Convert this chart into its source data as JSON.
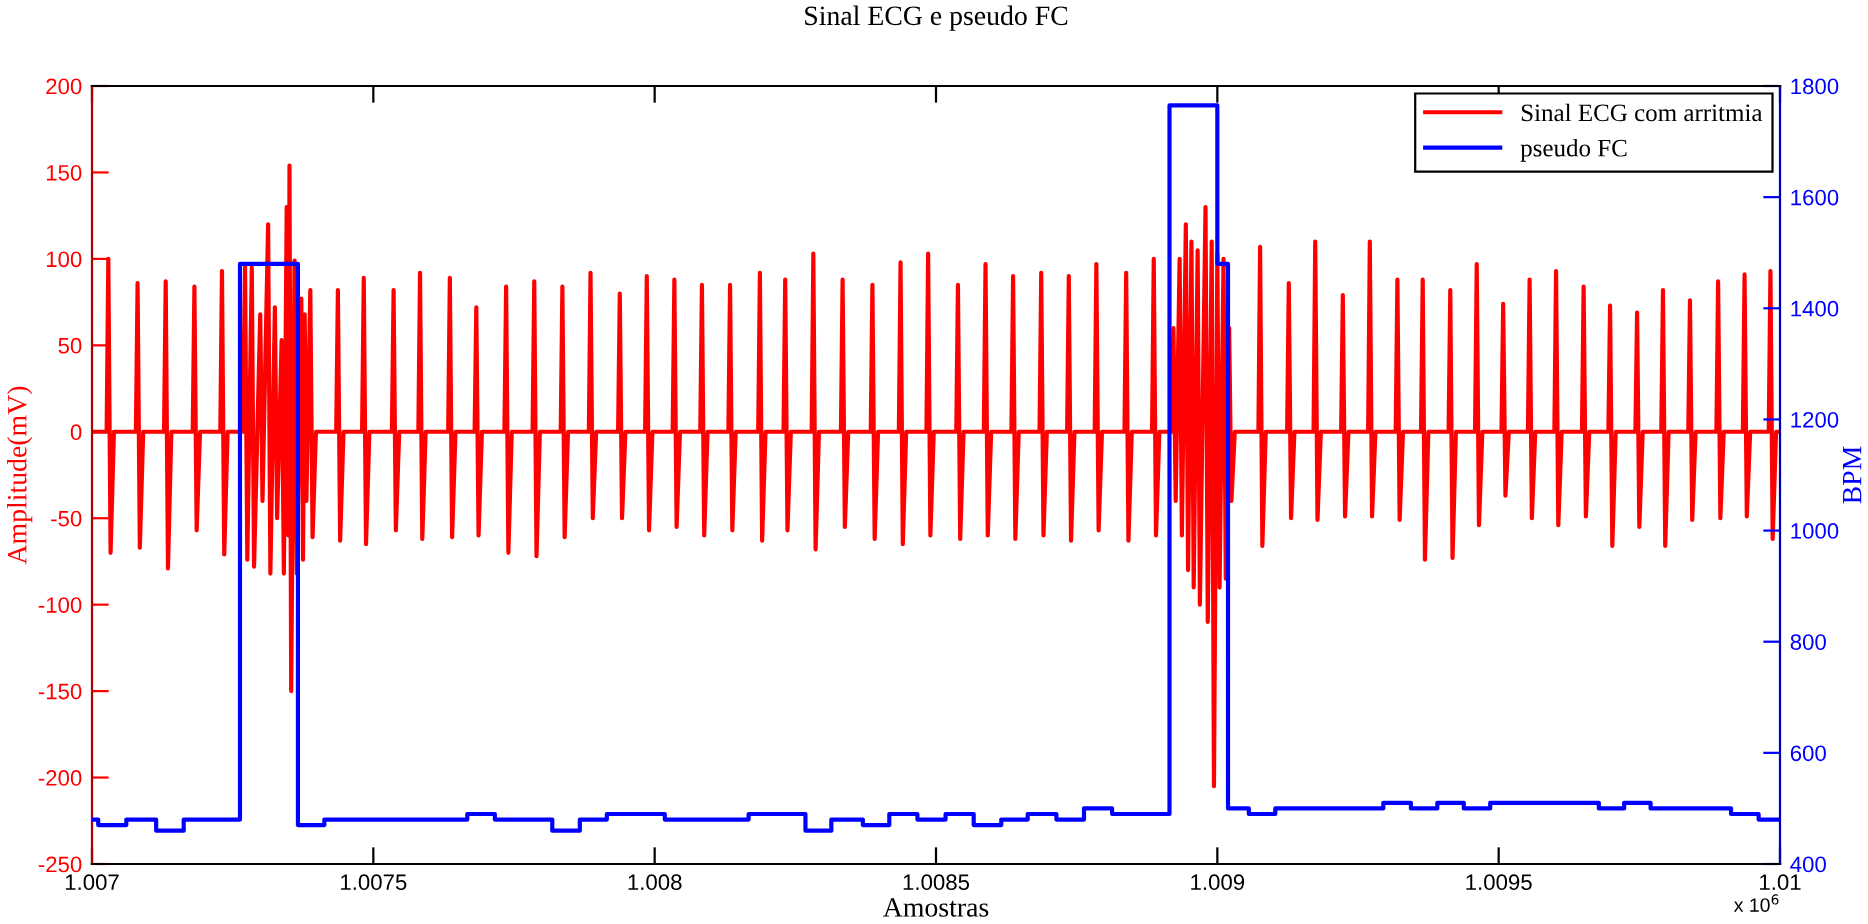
{
  "chart_data": {
    "type": "line",
    "title": "Sinal ECG e pseudo FC",
    "xlabel": "Amostras",
    "ylabel": "Amplitude(mV)",
    "y2label": "BPM",
    "annotations": [
      "x 10$^{6}$"
    ],
    "xlim": [
      1.007,
      1.01
    ],
    "xticks": [
      1.007,
      1.0075,
      1.008,
      1.0085,
      1.009,
      1.0095,
      1.01
    ],
    "ylim": [
      -250,
      200
    ],
    "yticks": [
      -250,
      -200,
      -150,
      -100,
      -50,
      0,
      50,
      100,
      150,
      200
    ],
    "y2lim": [
      400,
      1800
    ],
    "y2ticks": [
      400,
      600,
      800,
      1000,
      1200,
      1400,
      1600,
      1800
    ],
    "grid": false,
    "legend": "top right",
    "series": [
      {
        "name": "Sinal ECG com arritmia",
        "color": "#ff0000",
        "x": [
          1.007,
          1.007026,
          1.007029,
          1.007033,
          1.007039,
          1.007078,
          1.007081,
          1.007085,
          1.007091,
          1.007128,
          1.007131,
          1.007135,
          1.007141,
          1.007179,
          1.007182,
          1.007186,
          1.007192,
          1.007228,
          1.007231,
          1.007235,
          1.007241,
          1.007268,
          1.007272,
          1.007276,
          1.007284,
          1.007288,
          1.007299,
          1.007303,
          1.007313,
          1.007317,
          1.007325,
          1.007329,
          1.007337,
          1.007341,
          1.007346,
          1.007349,
          1.007351,
          1.007354,
          1.00736,
          1.007364,
          1.007372,
          1.007375,
          1.007378,
          1.007381,
          1.007388,
          1.007392,
          1.007398,
          1.007434,
          1.007437,
          1.007441,
          1.007447,
          1.00748,
          1.007483,
          1.007487,
          1.007493,
          1.007533,
          1.007536,
          1.00754,
          1.007546,
          1.00758,
          1.007583,
          1.007587,
          1.007593,
          1.007633,
          1.007636,
          1.00764,
          1.007646,
          1.00768,
          1.007683,
          1.007687,
          1.007693,
          1.007733,
          1.007736,
          1.00774,
          1.007746,
          1.007783,
          1.007786,
          1.00779,
          1.007796,
          1.007833,
          1.007836,
          1.00784,
          1.007846,
          1.007883,
          1.007886,
          1.00789,
          1.007896,
          1.007935,
          1.007938,
          1.007942,
          1.007948,
          1.007983,
          1.007986,
          1.00799,
          1.007996,
          1.008032,
          1.008035,
          1.008039,
          1.008045,
          1.008081,
          1.008084,
          1.008088,
          1.008094,
          1.008131,
          1.008134,
          1.008138,
          1.008144,
          1.008184,
          1.008187,
          1.008191,
          1.008197,
          1.008229,
          1.008232,
          1.008236,
          1.008242,
          1.008279,
          1.008282,
          1.008286,
          1.008292,
          1.008331,
          1.008334,
          1.008338,
          1.008344,
          1.008384,
          1.008387,
          1.008391,
          1.008397,
          1.008434,
          1.008437,
          1.008441,
          1.008447,
          1.008483,
          1.008486,
          1.00849,
          1.008496,
          1.008536,
          1.008539,
          1.008543,
          1.008549,
          1.008585,
          1.008588,
          1.008592,
          1.008598,
          1.008634,
          1.008637,
          1.008641,
          1.008647,
          1.008684,
          1.008687,
          1.008691,
          1.008697,
          1.008733,
          1.008736,
          1.00874,
          1.008746,
          1.008782,
          1.008785,
          1.008789,
          1.008795,
          1.008835,
          1.008838,
          1.008842,
          1.008848,
          1.008884,
          1.008887,
          1.008891,
          1.008897,
          1.008918,
          1.008922,
          1.008926,
          1.008933,
          1.008937,
          1.008944,
          1.008948,
          1.008954,
          1.008958,
          1.008965,
          1.008969,
          1.008979,
          1.008983,
          1.00899,
          1.008994,
          1.009,
          1.009004,
          1.009011,
          1.009015,
          1.009021,
          1.009025,
          1.009031,
          1.009073,
          1.009076,
          1.00908,
          1.009086,
          1.009124,
          1.009127,
          1.009131,
          1.009137,
          1.009171,
          1.009174,
          1.009178,
          1.009184,
          1.00922,
          1.009223,
          1.009227,
          1.009233,
          1.009268,
          1.009271,
          1.009275,
          1.009281,
          1.009317,
          1.00932,
          1.009324,
          1.00933,
          1.009362,
          1.009365,
          1.009369,
          1.009375,
          1.009411,
          1.009414,
          1.009418,
          1.009424,
          1.009458,
          1.009461,
          1.009465,
          1.009471,
          1.009505,
          1.009508,
          1.009512,
          1.009518,
          1.009552,
          1.009555,
          1.009559,
          1.009565,
          1.009599,
          1.009602,
          1.009606,
          1.009612,
          1.009648,
          1.009651,
          1.009655,
          1.009661,
          1.009695,
          1.009698,
          1.009702,
          1.009708,
          1.009743,
          1.009746,
          1.00975,
          1.009756,
          1.009789,
          1.009792,
          1.009796,
          1.009802,
          1.009837,
          1.00984,
          1.009844,
          1.00985,
          1.009887,
          1.00989,
          1.009894,
          1.0099,
          1.009934,
          1.009937,
          1.009941,
          1.009947,
          1.00998,
          1.009983,
          1.009987,
          1.009993,
          1.01
        ],
        "values": [
          0,
          0,
          100,
          -70,
          0,
          0,
          86,
          -67,
          0,
          0,
          87,
          -79,
          0,
          0,
          84,
          -57,
          0,
          0,
          93,
          -71,
          0,
          0,
          96,
          -74,
          95,
          -78,
          68,
          -40,
          120,
          -82,
          72,
          -50,
          53,
          -82,
          130,
          -60,
          154,
          -150,
          99,
          -82,
          77,
          -74,
          68,
          -40,
          82,
          -61,
          0,
          0,
          82,
          -63,
          0,
          0,
          89,
          -65,
          0,
          0,
          82,
          -57,
          0,
          0,
          92,
          -62,
          0,
          0,
          89,
          -61,
          0,
          0,
          72,
          -60,
          0,
          0,
          84,
          -70,
          0,
          0,
          87,
          -72,
          0,
          0,
          84,
          -61,
          0,
          0,
          92,
          -50,
          0,
          0,
          80,
          -50,
          0,
          0,
          90,
          -57,
          0,
          0,
          88,
          -55,
          0,
          0,
          85,
          -60,
          0,
          0,
          85,
          -57,
          0,
          0,
          92,
          -63,
          0,
          0,
          88,
          -57,
          0,
          0,
          103,
          -68,
          0,
          0,
          88,
          -55,
          0,
          0,
          85,
          -62,
          0,
          0,
          98,
          -65,
          0,
          0,
          103,
          -60,
          0,
          0,
          85,
          -62,
          0,
          0,
          97,
          -60,
          0,
          0,
          90,
          -62,
          0,
          0,
          92,
          -60,
          0,
          0,
          90,
          -63,
          0,
          0,
          97,
          -57,
          0,
          0,
          92,
          -63,
          0,
          0,
          100,
          -60,
          0,
          0,
          60,
          -40,
          100,
          -60,
          120,
          -80,
          110,
          -90,
          105,
          -100,
          130,
          -110,
          110,
          -205,
          103,
          -90,
          100,
          -85,
          60,
          -40,
          0,
          0,
          107,
          -66,
          0,
          0,
          86,
          -50,
          0,
          0,
          110,
          -51,
          0,
          0,
          79,
          -49,
          0,
          0,
          110,
          -49,
          0,
          0,
          88,
          -51,
          0,
          0,
          88,
          -74,
          0,
          0,
          82,
          -73,
          0,
          0,
          97,
          -54,
          0,
          0,
          74,
          -37,
          0,
          0,
          88,
          -50,
          0,
          0,
          93,
          -54,
          0,
          0,
          84,
          -49,
          0,
          0,
          73,
          -66,
          0,
          0,
          69,
          -55,
          0,
          0,
          82,
          -66,
          0,
          0,
          76,
          -51,
          0,
          0,
          87,
          -50,
          0,
          0,
          91,
          -49,
          0,
          0,
          93,
          -62,
          0,
          0
        ]
      },
      {
        "name": "pseudo FC",
        "color": "#0000ff",
        "type": "step",
        "axis": "y2",
        "x": [
          1.007,
          1.007011,
          1.007061,
          1.007114,
          1.007163,
          1.007263,
          1.007366,
          1.007413,
          1.007667,
          1.007716,
          1.007818,
          1.007867,
          1.007915,
          1.008018,
          1.008167,
          1.008268,
          1.008314,
          1.00837,
          1.008417,
          1.008467,
          1.008517,
          1.008567,
          1.008616,
          1.008663,
          1.008714,
          1.008763,
          1.008813,
          1.008915,
          1.009,
          1.009019,
          1.009056,
          1.009103,
          1.009295,
          1.009344,
          1.009391,
          1.009438,
          1.009485,
          1.009678,
          1.009723,
          1.00977,
          1.009913,
          1.009962,
          1.01
        ],
        "values": [
          480,
          470,
          480,
          460,
          480,
          1480,
          470,
          480,
          490,
          480,
          460,
          480,
          490,
          480,
          490,
          460,
          480,
          470,
          490,
          480,
          490,
          470,
          480,
          490,
          480,
          500,
          490,
          1765,
          1480,
          500,
          490,
          500,
          510,
          500,
          510,
          500,
          510,
          500,
          510,
          500,
          490,
          480,
          480
        ]
      }
    ]
  }
}
